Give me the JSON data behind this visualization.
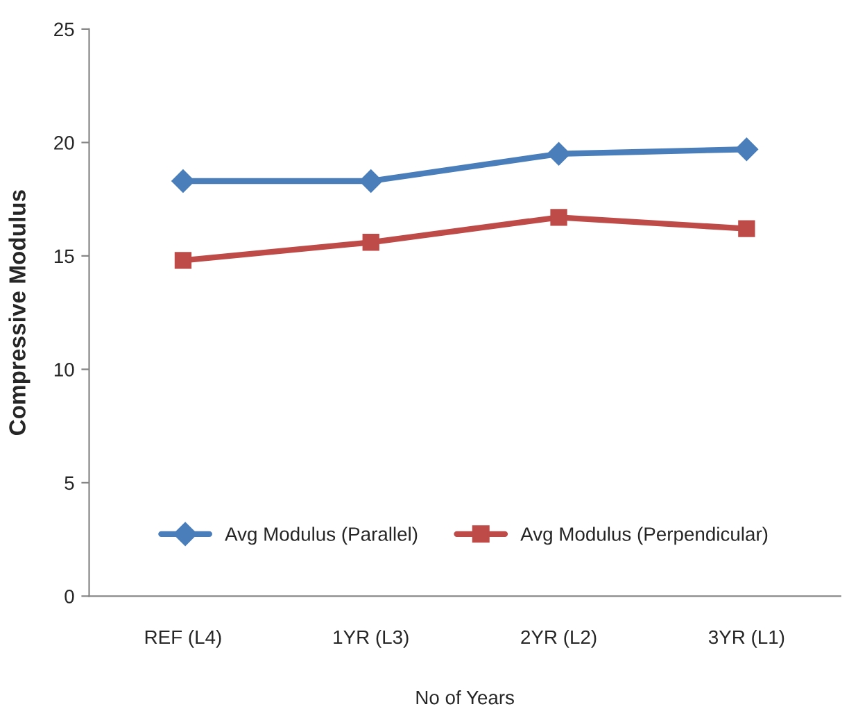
{
  "chart_data": {
    "type": "line",
    "xlabel": "No of Years",
    "ylabel": "Compressive Modulus",
    "categories": [
      "REF (L4)",
      "1YR (L3)",
      "2YR (L2)",
      "3YR (L1)"
    ],
    "series": [
      {
        "name": "Avg Modulus (Parallel)",
        "color": "#4a7ebb",
        "values": [
          18.3,
          18.3,
          19.5,
          19.7
        ],
        "marker": "diamond"
      },
      {
        "name": "Avg Modulus (Perpendicular)",
        "color": "#be4b48",
        "values": [
          14.8,
          15.6,
          16.7,
          16.2
        ],
        "marker": "square"
      }
    ],
    "ylim": [
      0,
      25
    ],
    "yticks": [
      0,
      5,
      10,
      15,
      20,
      25
    ],
    "grid": false,
    "legend": "bottom"
  }
}
